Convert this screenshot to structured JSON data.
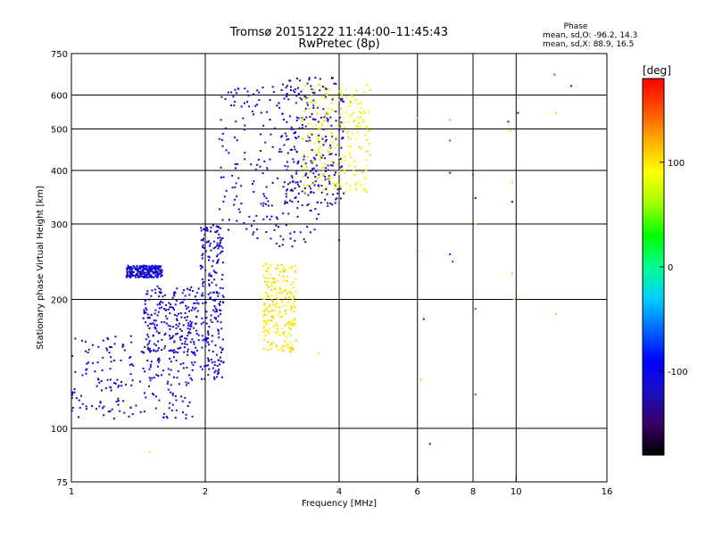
{
  "chart_data": {
    "type": "scatter",
    "title": "Tromsø 20151222 11:44:00–11:45:43",
    "subtitle": "RwPretec (8p)",
    "xlabel": "Frequency [MHz]",
    "ylabel": "Stationary phase Virtual Height [km]",
    "x_scale": "log",
    "y_scale": "log",
    "xlim": [
      1,
      16
    ],
    "ylim": [
      75,
      750
    ],
    "x_ticks": [
      1,
      2,
      4,
      6,
      8,
      10,
      16
    ],
    "x_tick_labels": [
      "1",
      "2",
      "4",
      "6",
      "8",
      "10",
      "16"
    ],
    "y_ticks": [
      75,
      100,
      200,
      300,
      400,
      500,
      600,
      750
    ],
    "y_tick_labels": [
      "75",
      "100",
      "200",
      "300",
      "400",
      "500",
      "600",
      "750"
    ],
    "x_gridlines": [
      2,
      4,
      6,
      8,
      10
    ],
    "y_gridlines": [
      100,
      200,
      300,
      400,
      500,
      600
    ],
    "stats": {
      "header": "Phase",
      "line_o": "mean, sd,O: -96.2, 14.3",
      "line_x": "mean, sd,X:  88.9, 16.5"
    },
    "colorbar": {
      "unit_label": "[deg]",
      "range": [
        -180,
        180
      ],
      "ticks": [
        100,
        0,
        -100
      ],
      "tick_labels": [
        "100",
        "0",
        "-100"
      ],
      "colormap": [
        "#000000",
        "#3a0066",
        "#1a10c0",
        "#0000ff",
        "#0066ff",
        "#00d0ff",
        "#00ff90",
        "#00ff00",
        "#a0ff00",
        "#ffff00",
        "#ffb000",
        "#ff5000",
        "#ff0000"
      ]
    },
    "echo_regions": [
      {
        "name": "E/F1 low trace",
        "x": [
          1.0,
          1.9
        ],
        "y": [
          105,
          165
        ],
        "phase": -110
      },
      {
        "name": "steep low branch",
        "x": [
          1.45,
          1.95
        ],
        "y": [
          150,
          215
        ],
        "phase": -115
      },
      {
        "name": "isolated trace",
        "x": [
          1.33,
          1.6
        ],
        "y": [
          225,
          240
        ],
        "phase": -110
      },
      {
        "name": "vertical trace near 2 MHz",
        "x": [
          1.95,
          2.2
        ],
        "y": [
          130,
          300
        ],
        "phase": -112
      },
      {
        "name": "F-layer O-mode dense",
        "x": [
          2.15,
          3.6
        ],
        "y": [
          265,
          640
        ],
        "phase": -108
      },
      {
        "name": "F-layer O-mode upper",
        "x": [
          3.0,
          4.1
        ],
        "y": [
          330,
          660
        ],
        "phase": -125
      },
      {
        "name": "F-layer X-mode",
        "x": [
          3.3,
          4.7
        ],
        "y": [
          355,
          640
        ],
        "phase": 90
      },
      {
        "name": "mid trace",
        "x": [
          2.7,
          3.2
        ],
        "y": [
          150,
          245
        ],
        "phase": 95
      }
    ],
    "scattered_points": [
      {
        "x": 6.0,
        "y": 530,
        "phase": 120
      },
      {
        "x": 6.0,
        "y": 410,
        "phase": 150
      },
      {
        "x": 6.0,
        "y": 260,
        "phase": 160
      },
      {
        "x": 6.1,
        "y": 130,
        "phase": 110
      },
      {
        "x": 6.2,
        "y": 180,
        "phase": -110
      },
      {
        "x": 6.4,
        "y": 92,
        "phase": -120
      },
      {
        "x": 7.1,
        "y": 525,
        "phase": 120
      },
      {
        "x": 7.1,
        "y": 470,
        "phase": -60
      },
      {
        "x": 7.1,
        "y": 395,
        "phase": -80
      },
      {
        "x": 7.1,
        "y": 255,
        "phase": -80
      },
      {
        "x": 7.2,
        "y": 245,
        "phase": -70
      },
      {
        "x": 8.0,
        "y": 390,
        "phase": 170
      },
      {
        "x": 8.1,
        "y": 345,
        "phase": -110
      },
      {
        "x": 8.1,
        "y": 300,
        "phase": 95
      },
      {
        "x": 8.1,
        "y": 190,
        "phase": 160
      },
      {
        "x": 8.1,
        "y": 120,
        "phase": 165
      },
      {
        "x": 9.6,
        "y": 520,
        "phase": -120
      },
      {
        "x": 9.7,
        "y": 495,
        "phase": 110
      },
      {
        "x": 9.8,
        "y": 375,
        "phase": 100
      },
      {
        "x": 9.8,
        "y": 338,
        "phase": -100
      },
      {
        "x": 9.8,
        "y": 230,
        "phase": 110
      },
      {
        "x": 9.9,
        "y": 200,
        "phase": 95
      },
      {
        "x": 10.1,
        "y": 545,
        "phase": -140
      },
      {
        "x": 12.2,
        "y": 670,
        "phase": 160
      },
      {
        "x": 12.3,
        "y": 545,
        "phase": 110
      },
      {
        "x": 12.3,
        "y": 185,
        "phase": 115
      },
      {
        "x": 13.3,
        "y": 630,
        "phase": -105
      },
      {
        "x": 1.5,
        "y": 88,
        "phase": 100
      },
      {
        "x": 3.6,
        "y": 150,
        "phase": 100
      },
      {
        "x": 4.0,
        "y": 275,
        "phase": -110
      },
      {
        "x": 2.95,
        "y": 182,
        "phase": 100
      }
    ]
  }
}
